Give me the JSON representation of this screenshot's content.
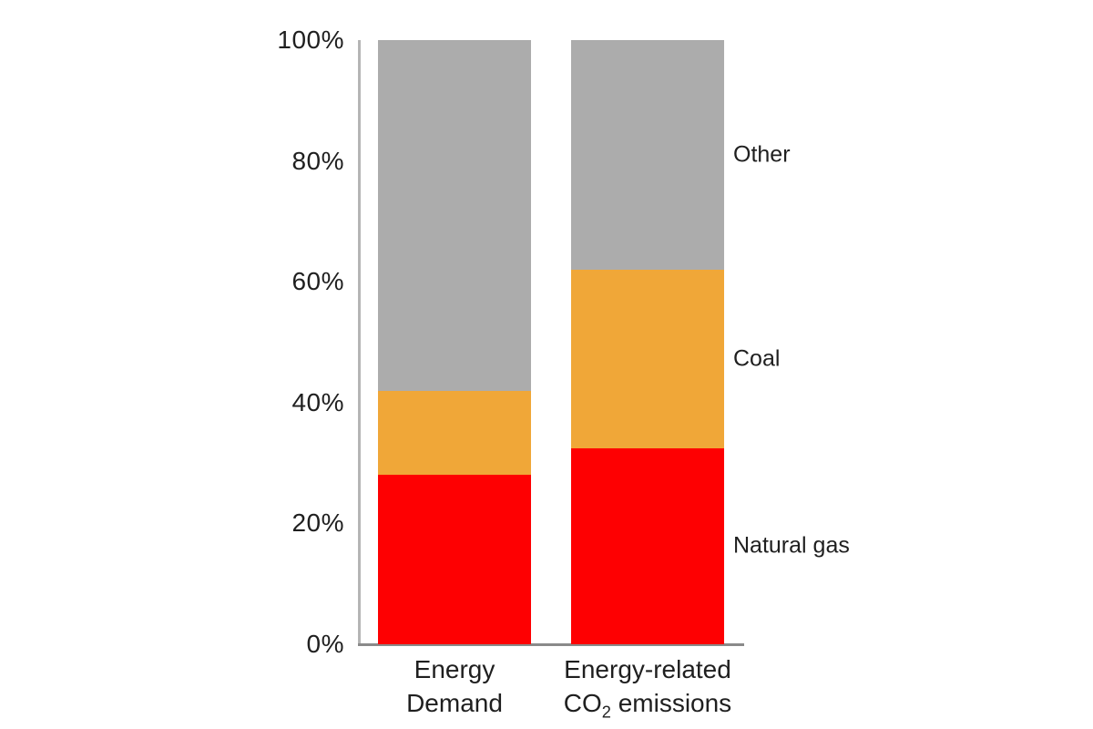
{
  "chart_data": {
    "type": "bar",
    "stacked": true,
    "title": "",
    "xlabel": "",
    "ylabel": "",
    "categories": [
      "Energy Demand",
      "Energy-related CO2 emissions"
    ],
    "series": [
      {
        "name": "Natural gas",
        "color": "#fe0002",
        "values": [
          28,
          32.5
        ]
      },
      {
        "name": "Coal",
        "color": "#f0a738",
        "values": [
          14,
          29.5
        ]
      },
      {
        "name": "Other",
        "color": "#acacac",
        "values": [
          58,
          38
        ]
      }
    ],
    "ylim": [
      0,
      100
    ],
    "yticks": [
      "0%",
      "20%",
      "40%",
      "60%",
      "80%",
      "100%"
    ],
    "grid": false,
    "legend_position": "right of second bar, aligned to segment centers"
  },
  "x_labels": [
    {
      "line1": "Energy",
      "line2": "Demand"
    },
    {
      "line1": "Energy-related",
      "line2_pre": "CO",
      "line2_sub": "2",
      "line2_post": " emissions"
    }
  ],
  "colors": {
    "axis_line_vertical": "#b5b5b5",
    "axis_line_horizontal": "#8a8a8a",
    "text": "#1f1f1f",
    "background": "#ffffff"
  }
}
